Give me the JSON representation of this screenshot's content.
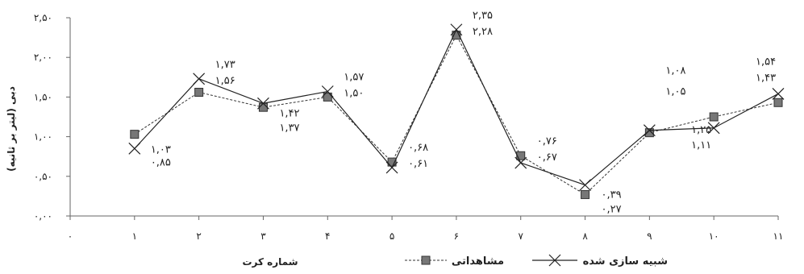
{
  "chart_data": {
    "type": "line",
    "xlabel": "شماره کرت",
    "ylabel": "دبی (لیتر بر ثانیه)",
    "x": [
      1,
      2,
      3,
      4,
      5,
      6,
      7,
      8,
      9,
      10,
      11
    ],
    "x_tick_labels": [
      "۰",
      "۱",
      "۲",
      "۳",
      "۴",
      "۵",
      "۶",
      "۷",
      "۸",
      "۹",
      "۱۰",
      "۱۱"
    ],
    "y_tick_labels": [
      "۰,۰۰",
      "۰,۵۰",
      "۱,۰۰",
      "۱,۵۰",
      "۲,۰۰",
      "۲,۵۰"
    ],
    "xlim": [
      0,
      11
    ],
    "ylim": [
      0,
      2.5
    ],
    "grid": false,
    "legend_position": "bottom-right",
    "series": [
      {
        "name": "مشاهداتی",
        "values": [
          1.03,
          1.56,
          1.37,
          1.5,
          0.68,
          2.28,
          0.76,
          0.27,
          1.05,
          1.25,
          1.43
        ],
        "labels": [
          "۱,۰۳",
          "۱,۵۶",
          "۱,۳۷",
          "۱,۵۰",
          "۰,۶۸",
          "۲,۲۸",
          "۰,۷۶",
          "۰,۲۷",
          "۱,۰۵",
          "۱,۲۵",
          "۱,۴۳"
        ],
        "style": "dashed",
        "marker": "square",
        "color": "#333333",
        "marker_color": "#777777"
      },
      {
        "name": "شبیه سازی شده",
        "values": [
          0.85,
          1.73,
          1.42,
          1.57,
          0.61,
          2.35,
          0.67,
          0.39,
          1.08,
          1.11,
          1.54
        ],
        "labels": [
          "۰,۸۵",
          "۱,۷۳",
          "۱,۴۲",
          "۱,۵۷",
          "۰,۶۱",
          "۲,۳۵",
          "۰,۶۷",
          "۰,۳۹",
          "۱,۰۸",
          "۱,۱۱",
          "۱,۵۴"
        ],
        "style": "solid",
        "marker": "x",
        "color": "#222222"
      }
    ]
  }
}
